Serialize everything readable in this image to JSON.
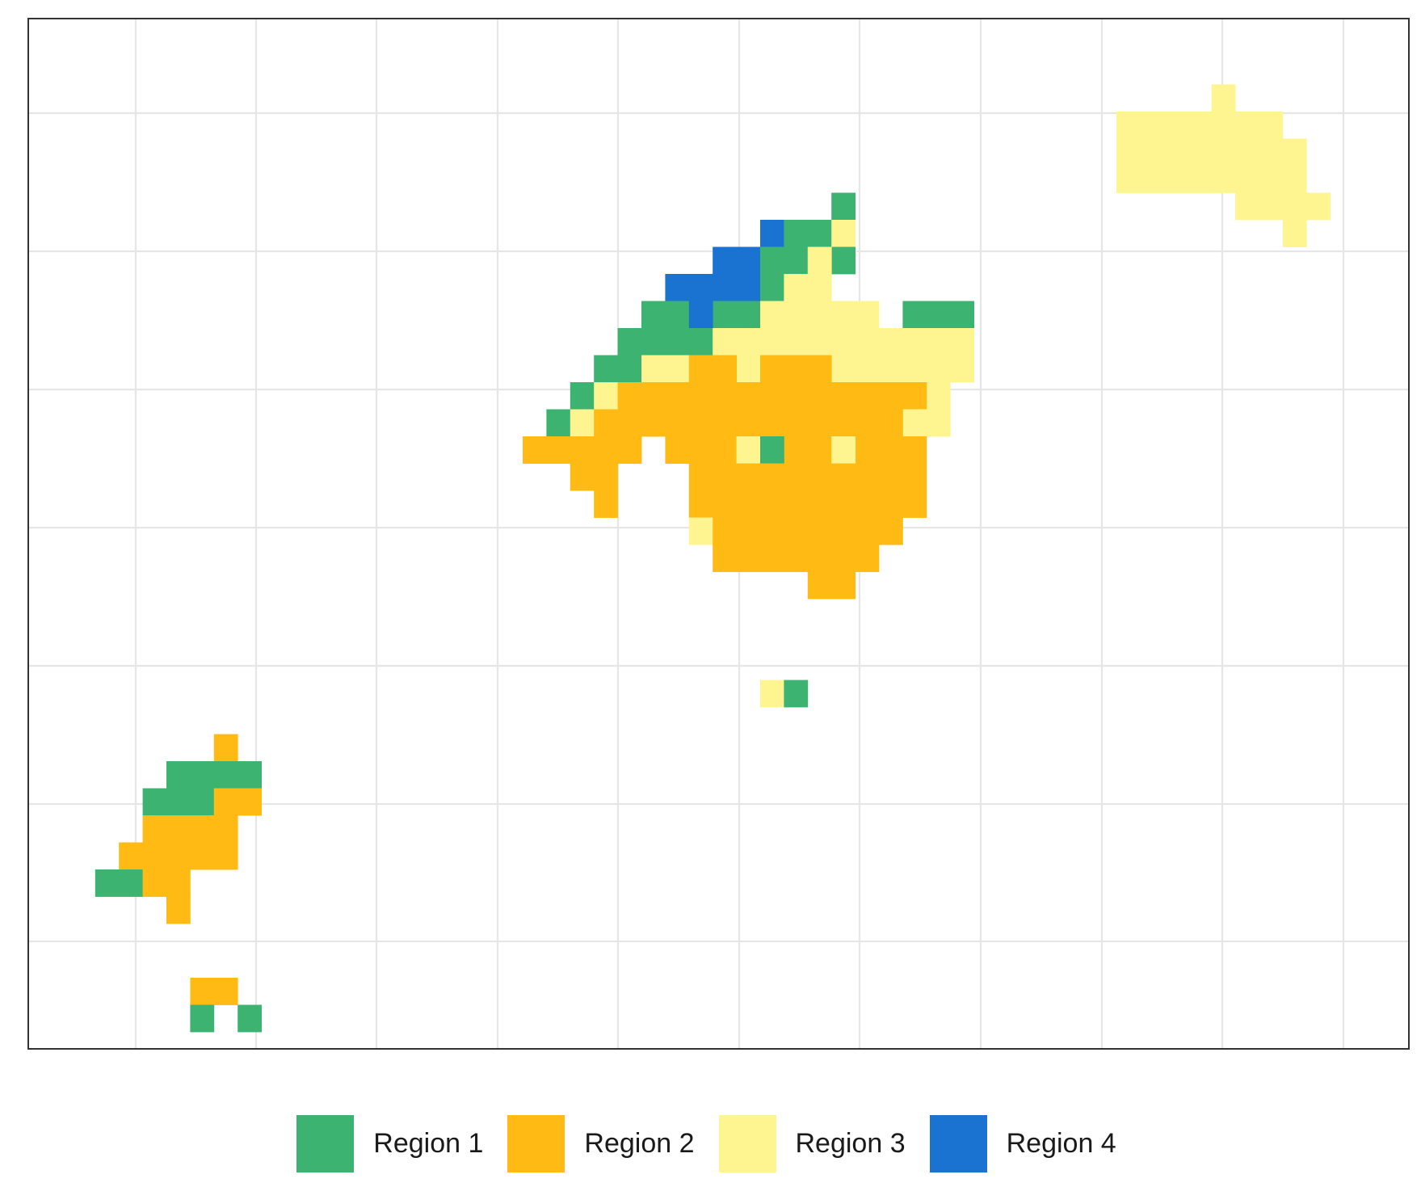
{
  "chart_data": {
    "type": "heatmap",
    "title": "",
    "xlabel": "",
    "ylabel": "",
    "axis_ticks_shown": false,
    "grid": true,
    "legend_position": "bottom",
    "regions": [
      {
        "id": 1,
        "label": "Region 1",
        "color": "#3cb371"
      },
      {
        "id": 2,
        "label": "Region 2",
        "color": "#ffba13"
      },
      {
        "id": 3,
        "label": "Region 3",
        "color": "#fff590"
      },
      {
        "id": 4,
        "label": "Region 4",
        "color": "#1a73d1"
      }
    ],
    "cells": [
      {
        "region": 3,
        "row": 2,
        "cols": [
          [
            50,
            50
          ]
        ]
      },
      {
        "region": 3,
        "row": 3,
        "cols": [
          [
            46,
            52
          ]
        ]
      },
      {
        "region": 3,
        "row": 4,
        "cols": [
          [
            46,
            53
          ]
        ]
      },
      {
        "region": 3,
        "row": 5,
        "cols": [
          [
            46,
            53
          ]
        ]
      },
      {
        "region": 3,
        "row": 6,
        "cols": [
          [
            51,
            54
          ]
        ]
      },
      {
        "region": 3,
        "row": 7,
        "cols": [
          [
            53,
            53
          ]
        ]
      },
      {
        "region": 1,
        "row": 6,
        "cols": [
          [
            34,
            34
          ]
        ]
      },
      {
        "region": 4,
        "row": 7,
        "cols": [
          [
            31,
            31
          ]
        ]
      },
      {
        "region": 1,
        "row": 7,
        "cols": [
          [
            32,
            33
          ]
        ]
      },
      {
        "region": 3,
        "row": 7,
        "cols": [
          [
            34,
            34
          ]
        ]
      },
      {
        "region": 4,
        "row": 8,
        "cols": [
          [
            29,
            30
          ]
        ]
      },
      {
        "region": 1,
        "row": 8,
        "cols": [
          [
            31,
            32
          ],
          [
            34,
            34
          ]
        ]
      },
      {
        "region": 3,
        "row": 8,
        "cols": [
          [
            33,
            33
          ]
        ]
      },
      {
        "region": 4,
        "row": 9,
        "cols": [
          [
            27,
            30
          ]
        ]
      },
      {
        "region": 1,
        "row": 9,
        "cols": [
          [
            31,
            31
          ]
        ]
      },
      {
        "region": 3,
        "row": 9,
        "cols": [
          [
            32,
            33
          ]
        ]
      },
      {
        "region": 1,
        "row": 10,
        "cols": [
          [
            26,
            27
          ],
          [
            29,
            30
          ],
          [
            37,
            39
          ]
        ]
      },
      {
        "region": 4,
        "row": 10,
        "cols": [
          [
            28,
            28
          ]
        ]
      },
      {
        "region": 3,
        "row": 10,
        "cols": [
          [
            31,
            35
          ]
        ]
      },
      {
        "region": 1,
        "row": 11,
        "cols": [
          [
            25,
            28
          ]
        ]
      },
      {
        "region": 3,
        "row": 11,
        "cols": [
          [
            29,
            39
          ]
        ]
      },
      {
        "region": 1,
        "row": 12,
        "cols": [
          [
            24,
            25
          ]
        ]
      },
      {
        "region": 3,
        "row": 12,
        "cols": [
          [
            26,
            27
          ],
          [
            30,
            30
          ],
          [
            34,
            39
          ]
        ]
      },
      {
        "region": 2,
        "row": 12,
        "cols": [
          [
            28,
            29
          ],
          [
            31,
            33
          ]
        ]
      },
      {
        "region": 1,
        "row": 13,
        "cols": [
          [
            23,
            23
          ]
        ]
      },
      {
        "region": 3,
        "row": 13,
        "cols": [
          [
            24,
            24
          ],
          [
            38,
            38
          ]
        ]
      },
      {
        "region": 2,
        "row": 13,
        "cols": [
          [
            25,
            37
          ]
        ]
      },
      {
        "region": 1,
        "row": 14,
        "cols": [
          [
            22,
            22
          ]
        ]
      },
      {
        "region": 3,
        "row": 14,
        "cols": [
          [
            23,
            23
          ],
          [
            37,
            38
          ]
        ]
      },
      {
        "region": 2,
        "row": 14,
        "cols": [
          [
            24,
            36
          ]
        ]
      },
      {
        "region": 2,
        "row": 15,
        "cols": [
          [
            21,
            25
          ],
          [
            27,
            29
          ],
          [
            32,
            33
          ],
          [
            35,
            37
          ]
        ]
      },
      {
        "region": 3,
        "row": 15,
        "cols": [
          [
            30,
            30
          ],
          [
            34,
            34
          ]
        ]
      },
      {
        "region": 1,
        "row": 15,
        "cols": [
          [
            31,
            31
          ]
        ]
      },
      {
        "region": 2,
        "row": 16,
        "cols": [
          [
            23,
            24
          ],
          [
            28,
            37
          ]
        ]
      },
      {
        "region": 2,
        "row": 17,
        "cols": [
          [
            24,
            24
          ],
          [
            28,
            37
          ]
        ]
      },
      {
        "region": 3,
        "row": 18,
        "cols": [
          [
            28,
            28
          ]
        ]
      },
      {
        "region": 2,
        "row": 18,
        "cols": [
          [
            29,
            36
          ]
        ]
      },
      {
        "region": 2,
        "row": 19,
        "cols": [
          [
            29,
            35
          ]
        ]
      },
      {
        "region": 2,
        "row": 20,
        "cols": [
          [
            33,
            34
          ]
        ]
      },
      {
        "region": 3,
        "row": 24,
        "cols": [
          [
            31,
            31
          ]
        ]
      },
      {
        "region": 1,
        "row": 24,
        "cols": [
          [
            32,
            32
          ]
        ]
      },
      {
        "region": 2,
        "row": 26,
        "cols": [
          [
            8,
            8
          ]
        ]
      },
      {
        "region": 1,
        "row": 27,
        "cols": [
          [
            6,
            9
          ]
        ]
      },
      {
        "region": 1,
        "row": 28,
        "cols": [
          [
            5,
            7
          ]
        ]
      },
      {
        "region": 2,
        "row": 28,
        "cols": [
          [
            8,
            9
          ]
        ]
      },
      {
        "region": 2,
        "row": 29,
        "cols": [
          [
            5,
            8
          ]
        ]
      },
      {
        "region": 2,
        "row": 30,
        "cols": [
          [
            4,
            8
          ]
        ]
      },
      {
        "region": 1,
        "row": 31,
        "cols": [
          [
            3,
            4
          ]
        ]
      },
      {
        "region": 2,
        "row": 31,
        "cols": [
          [
            5,
            6
          ]
        ]
      },
      {
        "region": 2,
        "row": 32,
        "cols": [
          [
            6,
            6
          ]
        ]
      },
      {
        "region": 2,
        "row": 35,
        "cols": [
          [
            7,
            8
          ]
        ]
      },
      {
        "region": 1,
        "row": 36,
        "cols": [
          [
            7,
            7
          ],
          [
            9,
            9
          ]
        ]
      }
    ]
  }
}
